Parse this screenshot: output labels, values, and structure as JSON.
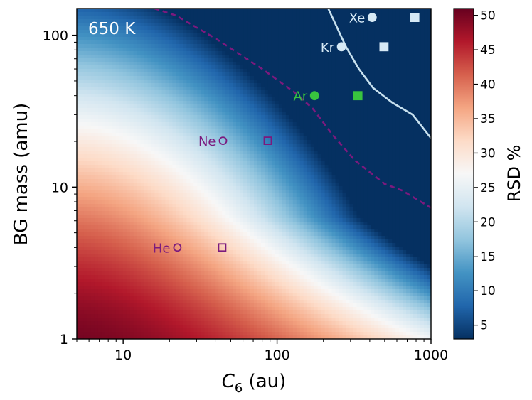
{
  "chart_data": {
    "type": "heatmap",
    "title": "",
    "panel_label": "650 K",
    "xlabel_main": "C",
    "xlabel_sub": "6",
    "xlabel_unit": " (au)",
    "ylabel": "BG mass (amu)",
    "xscale": "log",
    "yscale": "log",
    "xlim": [
      5,
      1000
    ],
    "ylim": [
      1,
      150
    ],
    "x_ticks": [
      {
        "value": 10,
        "label": "10"
      },
      {
        "value": 100,
        "label": "100"
      },
      {
        "value": 1000,
        "label": "1000"
      }
    ],
    "y_ticks": [
      {
        "value": 1,
        "label": "1"
      },
      {
        "value": 10,
        "label": "10"
      },
      {
        "value": 100,
        "label": "100"
      }
    ],
    "colorbar": {
      "label": "RSD %",
      "min": 3,
      "max": 51,
      "ticks": [
        5,
        10,
        15,
        20,
        25,
        30,
        35,
        40,
        45,
        50
      ],
      "colormap": [
        "#053061",
        "#2166ac",
        "#4393c3",
        "#92c5de",
        "#d1e5f0",
        "#f7f7f7",
        "#fddbc7",
        "#f4a582",
        "#d6604d",
        "#b2182b",
        "#67001f"
      ]
    },
    "contours": [
      {
        "name": "dashed-boundary",
        "style": "dashed",
        "color": "#7b1a7e",
        "points": [
          [
            16,
            150
          ],
          [
            22,
            135
          ],
          [
            40,
            95
          ],
          [
            80,
            60
          ],
          [
            130,
            42
          ],
          [
            170,
            33
          ],
          [
            230,
            22
          ],
          [
            320,
            15
          ],
          [
            500,
            10.5
          ],
          [
            650,
            9.5
          ],
          [
            1000,
            7.3
          ]
        ]
      },
      {
        "name": "solid-boundary",
        "style": "solid",
        "color": "#c8e1ef",
        "points": [
          [
            215,
            150
          ],
          [
            240,
            118
          ],
          [
            280,
            84
          ],
          [
            340,
            60
          ],
          [
            420,
            45
          ],
          [
            560,
            36
          ],
          [
            760,
            30
          ],
          [
            1000,
            21
          ]
        ]
      }
    ],
    "points": [
      {
        "label": "Xe",
        "c6_circle": 415,
        "c6_square": 785,
        "mass": 131,
        "color": "#d6e9f5",
        "filled": true
      },
      {
        "label": "Kr",
        "c6_circle": 262,
        "c6_square": 495,
        "mass": 84,
        "color": "#d6e9f5",
        "filled": true
      },
      {
        "label": "Ar",
        "c6_circle": 175,
        "c6_square": 335,
        "mass": 40,
        "color": "#39c43f",
        "filled": true
      },
      {
        "label": "Ne",
        "c6_circle": 44.5,
        "c6_square": 87,
        "mass": 20.2,
        "color": "#7b1a7e",
        "filled": false
      },
      {
        "label": "He",
        "c6_circle": 22.5,
        "c6_square": 44,
        "mass": 4.0,
        "color": "#7b1a7e",
        "filled": false
      }
    ]
  }
}
